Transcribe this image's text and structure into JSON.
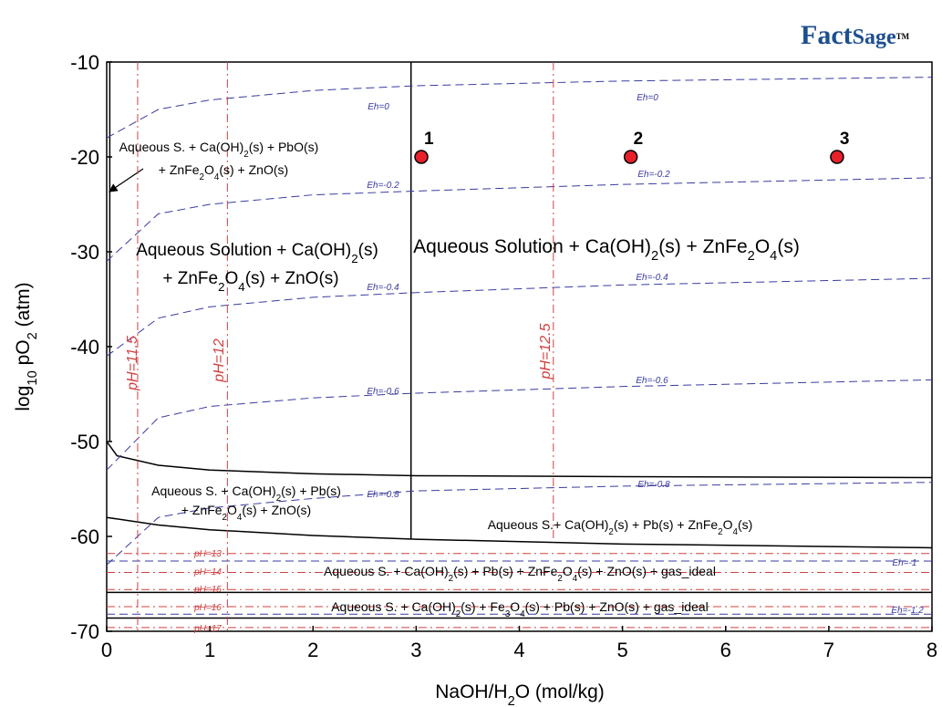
{
  "logo": {
    "parts": [
      "Fact",
      "Sage",
      "TM"
    ]
  },
  "chart_data": {
    "type": "line",
    "xlabel_parts": [
      "NaOH/H",
      "2",
      "O (mol/kg)"
    ],
    "ylabel_parts": [
      "log",
      "10",
      " pO",
      "2",
      " (atm)"
    ],
    "xlim": [
      0,
      8
    ],
    "ylim": [
      -70,
      -10
    ],
    "xticks": [
      0,
      1,
      2,
      3,
      4,
      5,
      6,
      7,
      8
    ],
    "yticks": [
      -10,
      -20,
      -30,
      -40,
      -50,
      -60,
      -70
    ],
    "grid": false,
    "series": [
      {
        "color": "#000000",
        "style": "solid",
        "x": [
          0,
          0.1,
          0.5,
          1,
          2,
          3,
          5,
          8
        ],
        "values": [
          -50,
          -51.5,
          -52.5,
          -53,
          -53.4,
          -53.6,
          -53.7,
          -53.8
        ]
      },
      {
        "color": "#000000",
        "style": "solid",
        "x": [
          0,
          0.5,
          1,
          2,
          3,
          5,
          8
        ],
        "values": [
          -58,
          -58.8,
          -59.3,
          -59.9,
          -60.3,
          -60.8,
          -61.2
        ]
      },
      {
        "color": "#000000",
        "style": "solid",
        "x": [
          2.95,
          2.95
        ],
        "values": [
          -10,
          -60.3
        ]
      },
      {
        "color": "#000000",
        "style": "solid",
        "x": [
          0.03,
          0.03
        ],
        "values": [
          -10,
          -50
        ]
      },
      {
        "color": "#000000",
        "style": "solid",
        "x": [
          0,
          8
        ],
        "values": [
          -65.9,
          -65.9
        ]
      },
      {
        "color": "#000000",
        "style": "solid",
        "x": [
          0,
          8
        ],
        "values": [
          -68.6,
          -68.6
        ]
      },
      {
        "name": "Eh=0",
        "color": "#3a3aa0",
        "style": "dash",
        "x": [
          0,
          0.5,
          1,
          2,
          3,
          5,
          8
        ],
        "values": [
          -18,
          -15,
          -14,
          -13,
          -12.5,
          -12,
          -11.6
        ]
      },
      {
        "name": "Eh=-0.2",
        "color": "#3a3aa0",
        "style": "dash",
        "x": [
          0,
          0.5,
          1,
          2,
          3,
          5,
          8
        ],
        "values": [
          -31,
          -26,
          -25,
          -24,
          -23.6,
          -22.9,
          -22.2
        ]
      },
      {
        "name": "Eh=-0.4",
        "color": "#3a3aa0",
        "style": "dash",
        "x": [
          0,
          0.5,
          1,
          2,
          3,
          5,
          8
        ],
        "values": [
          -41,
          -37,
          -35.8,
          -34.8,
          -34.3,
          -33.5,
          -32.8
        ]
      },
      {
        "name": "Eh=-0.6",
        "color": "#3a3aa0",
        "style": "dash",
        "x": [
          0,
          0.5,
          1,
          2,
          3,
          5,
          8
        ],
        "values": [
          -53,
          -47.5,
          -46.3,
          -45.4,
          -44.9,
          -44.2,
          -43.5
        ]
      },
      {
        "name": "Eh=-0.8",
        "color": "#3a3aa0",
        "style": "dash",
        "x": [
          0,
          0.5,
          1,
          2,
          3,
          5,
          8
        ],
        "values": [
          -63,
          -58,
          -57,
          -56,
          -55.2,
          -54.7,
          -54.3
        ]
      },
      {
        "name": "Eh=-1",
        "color": "#3a3aa0",
        "style": "dash",
        "x": [
          0,
          8
        ],
        "values": [
          -62.6,
          -62.6
        ]
      },
      {
        "name": "Eh=-1.2",
        "color": "#3a3aa0",
        "style": "dash",
        "x": [
          0,
          8
        ],
        "values": [
          -68.2,
          -68.2
        ]
      },
      {
        "name": "pH=11.5",
        "color": "#d04040",
        "style": "dashdot",
        "x": [
          0.3,
          0.3
        ],
        "values": [
          -10,
          -70
        ]
      },
      {
        "name": "pH=12",
        "color": "#d04040",
        "style": "dashdot",
        "x": [
          1.17,
          1.17
        ],
        "values": [
          -10,
          -70
        ]
      },
      {
        "name": "pH=12.5",
        "color": "#d04040",
        "style": "dashdot",
        "x": [
          4.33,
          4.33
        ],
        "values": [
          -10,
          -60.6
        ]
      },
      {
        "name": "pH=13",
        "color": "#d04040",
        "style": "dashdot",
        "x": [
          0,
          8
        ],
        "values": [
          -61.8,
          -61.8
        ]
      },
      {
        "name": "pH=14",
        "color": "#d04040",
        "style": "dashdot",
        "x": [
          0,
          8
        ],
        "values": [
          -63.8,
          -63.8
        ]
      },
      {
        "name": "pH=15",
        "color": "#d04040",
        "style": "dashdot",
        "x": [
          0,
          8
        ],
        "values": [
          -65.6,
          -65.6
        ]
      },
      {
        "name": "pH=16",
        "color": "#d04040",
        "style": "dashdot",
        "x": [
          0,
          8
        ],
        "values": [
          -67.4,
          -67.4
        ]
      },
      {
        "name": "pH=17",
        "color": "#d04040",
        "style": "dashdot",
        "x": [
          0,
          8
        ],
        "values": [
          -69.6,
          -69.6
        ]
      }
    ],
    "points": {
      "color": "#e8202a",
      "x": [
        3.05,
        5.08,
        7.08
      ],
      "values": [
        -20,
        -20,
        -20
      ],
      "labels": [
        "1",
        "2",
        "3"
      ]
    },
    "annotations": [
      {
        "parts": [
          "Aqueous S. + Ca(OH)",
          "2",
          "(s) + PbO(s)"
        ]
      },
      {
        "parts": [
          "+ ZnFe",
          "2",
          "O",
          "4",
          "(s) + ZnO(s)"
        ]
      },
      {
        "parts": [
          "Aqueous Solution + Ca(OH)",
          "2",
          "(s)"
        ]
      },
      {
        "parts": [
          "+ ZnFe",
          "2",
          "O",
          "4",
          "(s) + ZnO(s)"
        ]
      },
      {
        "parts": [
          "Aqueous Solution + Ca(OH)",
          "2",
          "(s) + ZnFe",
          "2",
          "O",
          "4",
          "(s)"
        ]
      },
      {
        "parts": [
          "Aqueous S. + Ca(OH)",
          "2",
          "(s) + Pb(s)"
        ]
      },
      {
        "parts": [
          "+ ZnFe",
          "2",
          "O",
          "4",
          "(s) + ZnO(s)"
        ]
      },
      {
        "parts": [
          "Aqueous S.+ Ca(OH)",
          "2",
          "(s) + Pb(s) + ZnFe",
          "2",
          "O",
          "4",
          "(s)"
        ]
      },
      {
        "parts": [
          "Aqueous S. + Ca(OH)",
          "2",
          "(s) + Pb(s) + ZnFe",
          "2",
          "O",
          "4",
          "(s) + ZnO(s) + gas_ideal"
        ]
      },
      {
        "parts": [
          "Aqueous S. + Ca(OH)",
          "2",
          "(s) + Fe",
          "3",
          "O",
          "4",
          "(s) + Pb(s) + ZnO(s) + gas_ideal"
        ]
      }
    ]
  }
}
